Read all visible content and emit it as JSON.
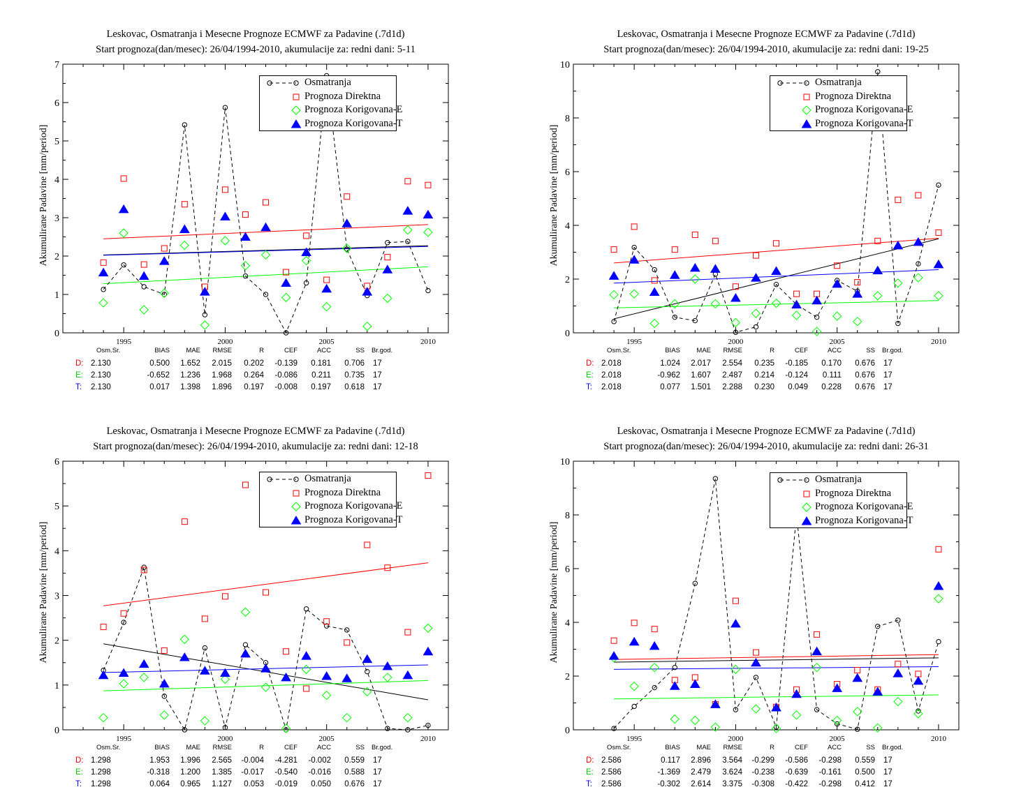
{
  "charts_common": {
    "ylabel": "Akumulirane Padavine [mm/period]",
    "legend": [
      "Osmatranja",
      "Prognoza Direktna",
      "Prognoza Korigovana-E",
      "Prognoza Korigovana-T"
    ],
    "stat_headers": [
      "Osm.Sr.",
      "BIAS",
      "MAE",
      "RMSE",
      "R",
      "CEF",
      "ACC",
      "SS",
      "Br.god."
    ],
    "row_labels": [
      "D:",
      "E:",
      "T:"
    ],
    "colors": {
      "obs": "#000000",
      "direct": "#ff0000",
      "corrE": "#00ff00",
      "corrT": "#0000ff"
    }
  },
  "chart_data": [
    {
      "type": "scatter",
      "title": "Leskovac, Osmatranja i Mesecne Prognoze ECMWF za Padavine (.7d1d)",
      "subtitle": "Start prognoza(dan/mesec): 26/04/1994-2010, akumulacije za: redni dani: 5-11",
      "ylabel": "Akumulirane Padavine [mm/period]",
      "x": [
        1994,
        1995,
        1996,
        1997,
        1998,
        1999,
        2000,
        2001,
        2002,
        2003,
        2004,
        2005,
        2006,
        2007,
        2008,
        2009,
        2010
      ],
      "xlim": [
        1992,
        2011
      ],
      "ylim": [
        0,
        7
      ],
      "xticks": [
        1995,
        2000,
        2005,
        2010
      ],
      "yticks": [
        0,
        1,
        2,
        3,
        4,
        5,
        6,
        7
      ],
      "legend_position": "top-right",
      "series": [
        {
          "name": "Osmatranja",
          "values": [
            1.13,
            1.77,
            1.2,
            1.0,
            5.42,
            0.47,
            5.87,
            1.48,
            1.0,
            0.0,
            1.3,
            6.7,
            2.18,
            0.97,
            2.35,
            2.38,
            1.1
          ],
          "trend": [
            2.03,
            2.27
          ]
        },
        {
          "name": "Prognoza Direktna",
          "values": [
            1.83,
            4.02,
            1.78,
            2.2,
            3.35,
            1.2,
            3.73,
            3.08,
            3.4,
            1.58,
            2.53,
            1.38,
            3.55,
            1.22,
            1.97,
            3.95,
            3.85
          ],
          "trend": [
            2.45,
            2.82
          ]
        },
        {
          "name": "Prognoza Korigovana-E",
          "values": [
            0.78,
            2.6,
            0.6,
            1.03,
            2.28,
            0.2,
            2.4,
            1.75,
            2.03,
            0.92,
            1.88,
            0.68,
            2.2,
            0.17,
            0.9,
            2.68,
            2.62
          ],
          "trend": [
            1.28,
            1.72
          ]
        },
        {
          "name": "Prognoza Korigovana-T",
          "values": [
            1.57,
            3.22,
            1.48,
            1.87,
            2.7,
            1.07,
            3.03,
            2.5,
            2.75,
            1.3,
            2.1,
            1.15,
            2.85,
            1.07,
            1.65,
            3.18,
            3.08
          ],
          "trend": [
            2.02,
            2.25
          ]
        }
      ],
      "stats": [
        [
          "2.130",
          "0.500",
          "1.652",
          "2.015",
          "0.202",
          "-0.139",
          "0.181",
          "0.706",
          "17"
        ],
        [
          "2.130",
          "-0.652",
          "1.236",
          "1.968",
          "0.264",
          "-0.086",
          "0.211",
          "0.735",
          "17"
        ],
        [
          "2.130",
          "0.017",
          "1.398",
          "1.896",
          "0.197",
          "-0.008",
          "0.197",
          "0.618",
          "17"
        ]
      ]
    },
    {
      "type": "scatter",
      "title": "Leskovac, Osmatranja i Mesecne Prognoze ECMWF za Padavine (.7d1d)",
      "subtitle": "Start prognoza(dan/mesec): 26/04/1994-2010, akumulacije za: redni dani: 19-25",
      "ylabel": "Akumulirane Padavine [mm/period]",
      "x": [
        1994,
        1995,
        1996,
        1997,
        1998,
        1999,
        2000,
        2001,
        2002,
        2003,
        2004,
        2005,
        2006,
        2007,
        2008,
        2009,
        2010
      ],
      "xlim": [
        1992,
        2011
      ],
      "ylim": [
        0,
        10
      ],
      "xticks": [
        1995,
        2000,
        2005,
        2010
      ],
      "yticks": [
        0,
        2,
        4,
        6,
        8,
        10
      ],
      "legend_position": "top-right",
      "series": [
        {
          "name": "Osmatranja",
          "values": [
            0.42,
            3.18,
            2.35,
            0.58,
            0.45,
            2.18,
            0.02,
            0.22,
            1.8,
            1.05,
            0.58,
            1.95,
            1.55,
            9.72,
            0.35,
            2.57,
            5.5
          ],
          "trend": [
            0.52,
            3.5
          ]
        },
        {
          "name": "Prognoza Direktna",
          "values": [
            3.1,
            3.95,
            1.95,
            3.1,
            3.65,
            3.42,
            1.72,
            2.88,
            3.33,
            1.45,
            1.45,
            2.5,
            1.88,
            3.42,
            4.95,
            5.12,
            3.73
          ],
          "trend": [
            2.6,
            3.52
          ]
        },
        {
          "name": "Prognoza Korigovana-E",
          "values": [
            1.42,
            1.45,
            0.35,
            1.08,
            2.0,
            1.08,
            0.38,
            0.72,
            1.1,
            0.65,
            0.05,
            0.62,
            0.42,
            1.38,
            1.85,
            2.05,
            1.38
          ],
          "trend": [
            0.93,
            1.2
          ]
        },
        {
          "name": "Prognoza Korigovana-T",
          "values": [
            2.12,
            2.72,
            1.52,
            2.15,
            2.42,
            2.38,
            1.3,
            2.05,
            2.3,
            1.05,
            1.2,
            1.82,
            1.45,
            2.32,
            3.25,
            3.38,
            2.55
          ],
          "trend": [
            1.85,
            2.35
          ]
        }
      ],
      "stats": [
        [
          "2.018",
          "1.024",
          "2.017",
          "2.554",
          "0.235",
          "-0.185",
          "0.170",
          "0.676",
          "17"
        ],
        [
          "2.018",
          "-0.962",
          "1.607",
          "2.487",
          "0.214",
          "-0.124",
          "0.111",
          "0.676",
          "17"
        ],
        [
          "2.018",
          "0.077",
          "1.501",
          "2.288",
          "0.230",
          "0.049",
          "0.228",
          "0.676",
          "17"
        ]
      ]
    },
    {
      "type": "scatter",
      "title": "Leskovac, Osmatranja i Mesecne Prognoze ECMWF za Padavine (.7d1d)",
      "subtitle": "Start prognoza(dan/mesec): 26/04/1994-2010, akumulacije za: redni dani: 12-18",
      "ylabel": "Akumulirane Padavine [mm/period]",
      "x": [
        1994,
        1995,
        1996,
        1997,
        1998,
        1999,
        2000,
        2001,
        2002,
        2003,
        2004,
        2005,
        2006,
        2007,
        2008,
        2009,
        2010
      ],
      "xlim": [
        1992,
        2011
      ],
      "ylim": [
        0,
        6
      ],
      "xticks": [
        1995,
        2000,
        2005,
        2010
      ],
      "yticks": [
        0,
        1,
        2,
        3,
        4,
        5,
        6
      ],
      "legend_position": "top-right",
      "series": [
        {
          "name": "Osmatranja",
          "values": [
            1.33,
            2.4,
            3.63,
            0.75,
            0.0,
            1.83,
            0.05,
            1.9,
            1.5,
            0.0,
            2.7,
            2.32,
            2.23,
            1.3,
            0.03,
            0.0,
            0.1
          ],
          "trend": [
            1.92,
            0.67
          ]
        },
        {
          "name": "Prognoza Direktna",
          "values": [
            2.3,
            2.6,
            3.57,
            1.77,
            4.65,
            2.48,
            2.98,
            5.47,
            3.07,
            1.75,
            0.92,
            2.42,
            1.95,
            4.13,
            3.62,
            2.18,
            5.68
          ],
          "trend": [
            2.77,
            3.73
          ]
        },
        {
          "name": "Prognoza Korigovana-E",
          "values": [
            0.27,
            1.03,
            1.17,
            0.33,
            2.02,
            0.2,
            1.13,
            2.63,
            0.95,
            0.03,
            1.35,
            0.77,
            0.27,
            0.85,
            1.17,
            0.27,
            2.27
          ],
          "trend": [
            0.87,
            1.1
          ]
        },
        {
          "name": "Prognoza Korigovana-T",
          "values": [
            1.22,
            1.27,
            1.47,
            1.03,
            1.62,
            1.32,
            1.27,
            1.7,
            1.37,
            1.17,
            1.65,
            1.2,
            1.15,
            1.58,
            1.42,
            1.22,
            1.75
          ],
          "trend": [
            1.28,
            1.45
          ]
        }
      ],
      "stats": [
        [
          "1.298",
          "1.953",
          "1.996",
          "2.565",
          "-0.004",
          "-4.281",
          "-0.002",
          "0.559",
          "17"
        ],
        [
          "1.298",
          "-0.318",
          "1.200",
          "1.385",
          "-0.017",
          "-0.540",
          "-0.016",
          "0.588",
          "17"
        ],
        [
          "1.298",
          "0.064",
          "0.965",
          "1.127",
          "0.053",
          "-0.019",
          "0.050",
          "0.676",
          "17"
        ]
      ]
    },
    {
      "type": "scatter",
      "title": "Leskovac, Osmatranja i Mesecne Prognoze ECMWF za Padavine (.7d1d)",
      "subtitle": "Start prognoza(dan/mesec): 26/04/1994-2010, akumulacije za: redni dani: 26-31",
      "ylabel": "Akumulirane Padavine [mm/period]",
      "x": [
        1994,
        1995,
        1996,
        1997,
        1998,
        1999,
        2000,
        2001,
        2002,
        2003,
        2004,
        2005,
        2006,
        2007,
        2008,
        2009,
        2010
      ],
      "xlim": [
        1992,
        2011
      ],
      "ylim": [
        0,
        10
      ],
      "xticks": [
        1995,
        2000,
        2005,
        2010
      ],
      "yticks": [
        0,
        2,
        4,
        6,
        8,
        10
      ],
      "legend_position": "top-right",
      "series": [
        {
          "name": "Osmatranja",
          "values": [
            0.05,
            0.87,
            1.57,
            2.32,
            5.45,
            9.35,
            0.75,
            1.95,
            0.1,
            8.0,
            0.75,
            0.22,
            0.02,
            3.85,
            4.08,
            0.7,
            3.28
          ],
          "trend": [
            2.52,
            2.68
          ]
        },
        {
          "name": "Prognoza Direktna",
          "values": [
            3.32,
            3.98,
            3.75,
            1.85,
            1.95,
            0.95,
            4.8,
            2.88,
            0.85,
            1.5,
            3.55,
            1.7,
            2.22,
            1.5,
            2.45,
            2.08,
            6.72
          ],
          "trend": [
            2.62,
            2.8
          ]
        },
        {
          "name": "Prognoza Korigovana-E",
          "values": [
            2.68,
            1.62,
            2.32,
            0.4,
            0.35,
            0.1,
            2.25,
            0.78,
            0.05,
            0.55,
            2.32,
            0.35,
            0.68,
            0.07,
            1.05,
            0.6,
            4.88
          ],
          "trend": [
            1.15,
            1.3
          ]
        },
        {
          "name": "Prognoza Korigovana-T",
          "values": [
            2.75,
            3.28,
            3.12,
            1.63,
            1.7,
            0.95,
            3.95,
            2.5,
            0.83,
            1.33,
            2.92,
            1.55,
            1.93,
            1.42,
            2.1,
            1.82,
            5.35
          ],
          "trend": [
            2.25,
            2.35
          ]
        }
      ],
      "stats": [
        [
          "2.586",
          "0.117",
          "2.896",
          "3.564",
          "-0.299",
          "-0.586",
          "-0.298",
          "0.559",
          "17"
        ],
        [
          "2.586",
          "-1.369",
          "2.479",
          "3.624",
          "-0.238",
          "-0.639",
          "-0.161",
          "0.500",
          "17"
        ],
        [
          "2.586",
          "-0.302",
          "2.614",
          "3.375",
          "-0.308",
          "-0.422",
          "-0.298",
          "0.412",
          "17"
        ]
      ]
    }
  ]
}
